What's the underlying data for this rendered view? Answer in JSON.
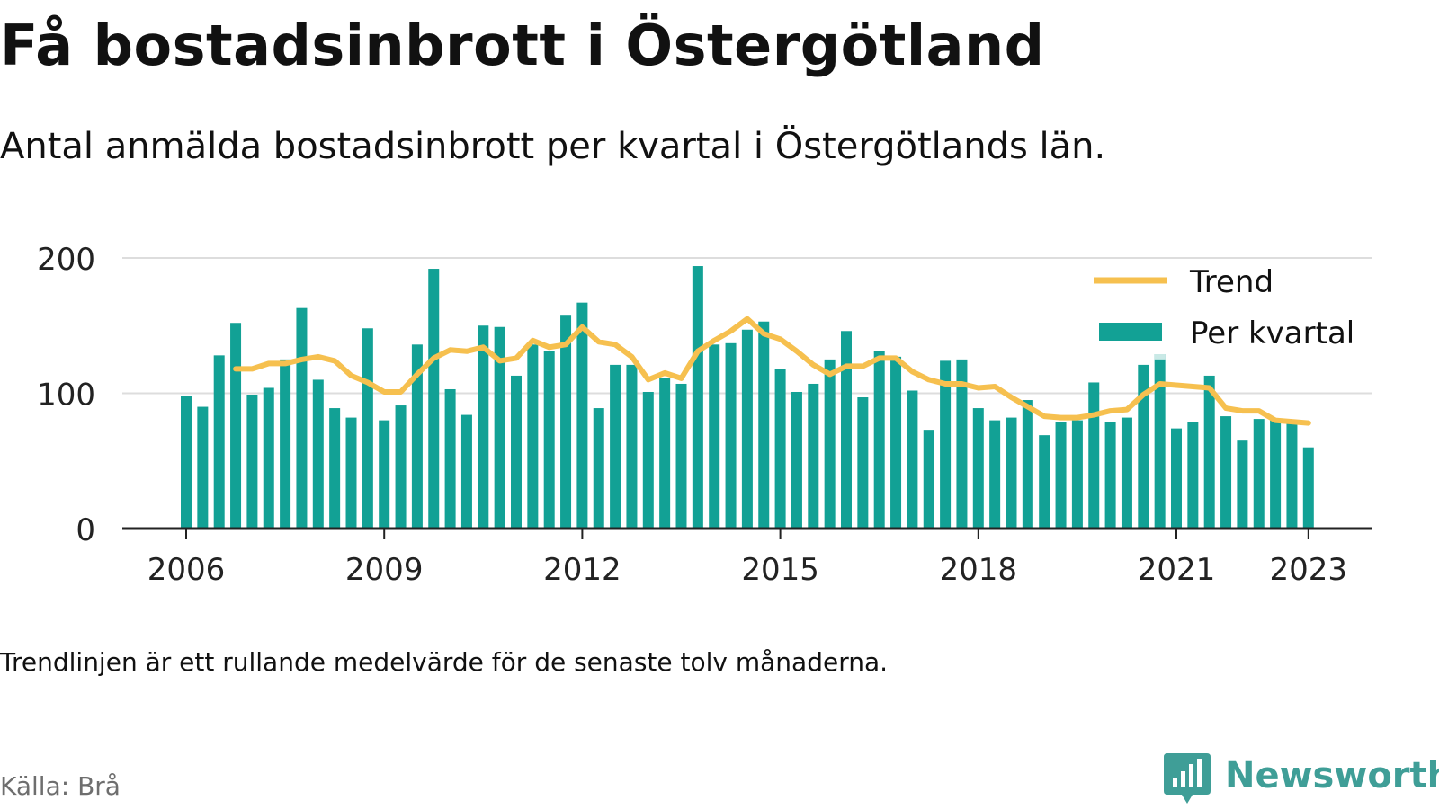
{
  "title": "Få bostadsinbrott i Östergötland",
  "subtitle": "Antal anmälda bostadsinbrott per kvartal i Östergötlands län.",
  "note": "Trendlinjen är ett rullande medelvärde för de senaste tolv månaderna.",
  "source": "Källa: Brå",
  "brand": "Newsworthy",
  "colors": {
    "bar": "#12a195",
    "bar_highlight": "#c9e9e6",
    "trend": "#f6c04f",
    "grid": "#dddddd",
    "axis": "#222222",
    "brand": "#3f9e97"
  },
  "chart_data": {
    "type": "bar",
    "ylim": [
      0,
      200
    ],
    "yticks": [
      "0",
      "100",
      "200"
    ],
    "xtick_labels": [
      {
        "label": "2006",
        "year": 2006
      },
      {
        "label": "2009",
        "year": 2009
      },
      {
        "label": "2012",
        "year": 2012
      },
      {
        "label": "2015",
        "year": 2015
      },
      {
        "label": "2018",
        "year": 2018
      },
      {
        "label": "2021",
        "year": 2021
      },
      {
        "label": "2023",
        "year": 2023
      }
    ],
    "grid": true,
    "legend_position": "top-right",
    "start_period": "2006 Q1",
    "series": [
      {
        "name": "Per kvartal",
        "type": "bar",
        "values": [
          98,
          90,
          128,
          152,
          99,
          104,
          125,
          163,
          110,
          89,
          82,
          148,
          80,
          91,
          136,
          192,
          103,
          84,
          150,
          149,
          113,
          136,
          131,
          158,
          167,
          89,
          121,
          121,
          101,
          111,
          107,
          194,
          136,
          137,
          147,
          153,
          118,
          101,
          107,
          125,
          146,
          97,
          131,
          127,
          102,
          73,
          124,
          125,
          89,
          80,
          82,
          95,
          69,
          79,
          80,
          108,
          79,
          82,
          121,
          143,
          74,
          79,
          113,
          83,
          65,
          81,
          81,
          79,
          60
        ]
      },
      {
        "name": "Trend",
        "type": "line",
        "values": [
          null,
          null,
          null,
          118,
          118,
          122,
          122,
          125,
          127,
          124,
          113,
          108,
          101,
          101,
          114,
          126,
          132,
          131,
          134,
          124,
          126,
          139,
          134,
          136,
          149,
          138,
          136,
          127,
          110,
          115,
          111,
          131,
          139,
          146,
          155,
          144,
          140,
          131,
          121,
          114,
          120,
          120,
          126,
          126,
          116,
          110,
          107,
          107,
          104,
          105,
          97,
          90,
          83,
          82,
          82,
          84,
          87,
          88,
          99,
          107,
          106,
          105,
          104,
          89,
          87,
          87,
          80,
          79,
          78
        ]
      }
    ]
  }
}
